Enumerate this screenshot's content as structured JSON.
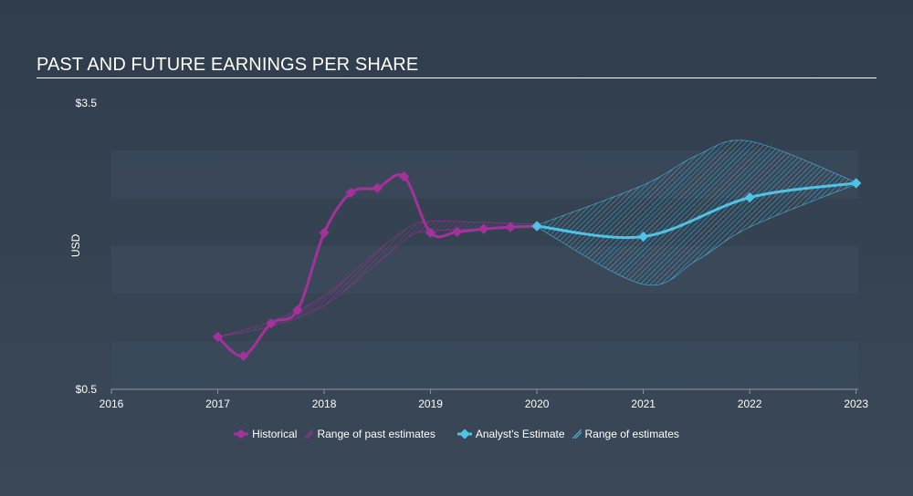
{
  "title": "PAST AND FUTURE EARNINGS PER SHARE",
  "colors": {
    "historical": "#a3329a",
    "estimate": "#4fc3e6",
    "band_fill": "#3e4d5e"
  },
  "chart_data": {
    "type": "line",
    "title": "PAST AND FUTURE EARNINGS PER SHARE",
    "ylabel": "USD",
    "y_tick_labels": [
      "$3.5",
      "$0.5"
    ],
    "ylim": [
      0.5,
      3.5
    ],
    "xlim": [
      2016,
      2023.02
    ],
    "x_ticks": [
      "2016",
      "2017",
      "2018",
      "2019",
      "2020",
      "2021",
      "2022",
      "2023"
    ],
    "legend_position": "bottom",
    "series": [
      {
        "name": "Historical",
        "x": [
          2017.0,
          2017.24,
          2017.5,
          2017.75,
          2018.0,
          2018.25,
          2018.5,
          2018.75,
          2019.0,
          2019.25,
          2019.5,
          2019.75,
          2020.0
        ],
        "y": [
          1.05,
          0.85,
          1.19,
          1.33,
          2.14,
          2.56,
          2.61,
          2.73,
          2.14,
          2.15,
          2.18,
          2.2,
          2.21
        ]
      },
      {
        "name": "Analyst's Estimate",
        "x": [
          2020.0,
          2021.0,
          2022.0,
          2023.0
        ],
        "y": [
          2.21,
          2.1,
          2.51,
          2.66
        ]
      }
    ],
    "past_estimates_range": {
      "name": "Range of past estimates",
      "x": [
        2017.0,
        2017.5,
        2018.0,
        2018.5,
        2018.8,
        2019.0,
        2019.5,
        2020.0
      ],
      "high": [
        1.05,
        1.21,
        1.48,
        1.95,
        2.2,
        2.26,
        2.25,
        2.23
      ],
      "low": [
        1.05,
        1.16,
        1.38,
        1.82,
        2.1,
        2.16,
        2.18,
        2.2
      ]
    },
    "estimates_range": {
      "name": "Range of estimates",
      "x": [
        2020.0,
        2021.0,
        2021.5,
        2022.0,
        2023.0
      ],
      "high": [
        2.22,
        2.64,
        2.95,
        3.1,
        2.67
      ],
      "low": [
        2.2,
        1.6,
        1.85,
        2.2,
        2.65
      ]
    }
  },
  "legend": {
    "historical": "Historical",
    "past_range": "Range of past estimates",
    "estimate": "Analyst's Estimate",
    "estimate_range": "Range of estimates"
  }
}
